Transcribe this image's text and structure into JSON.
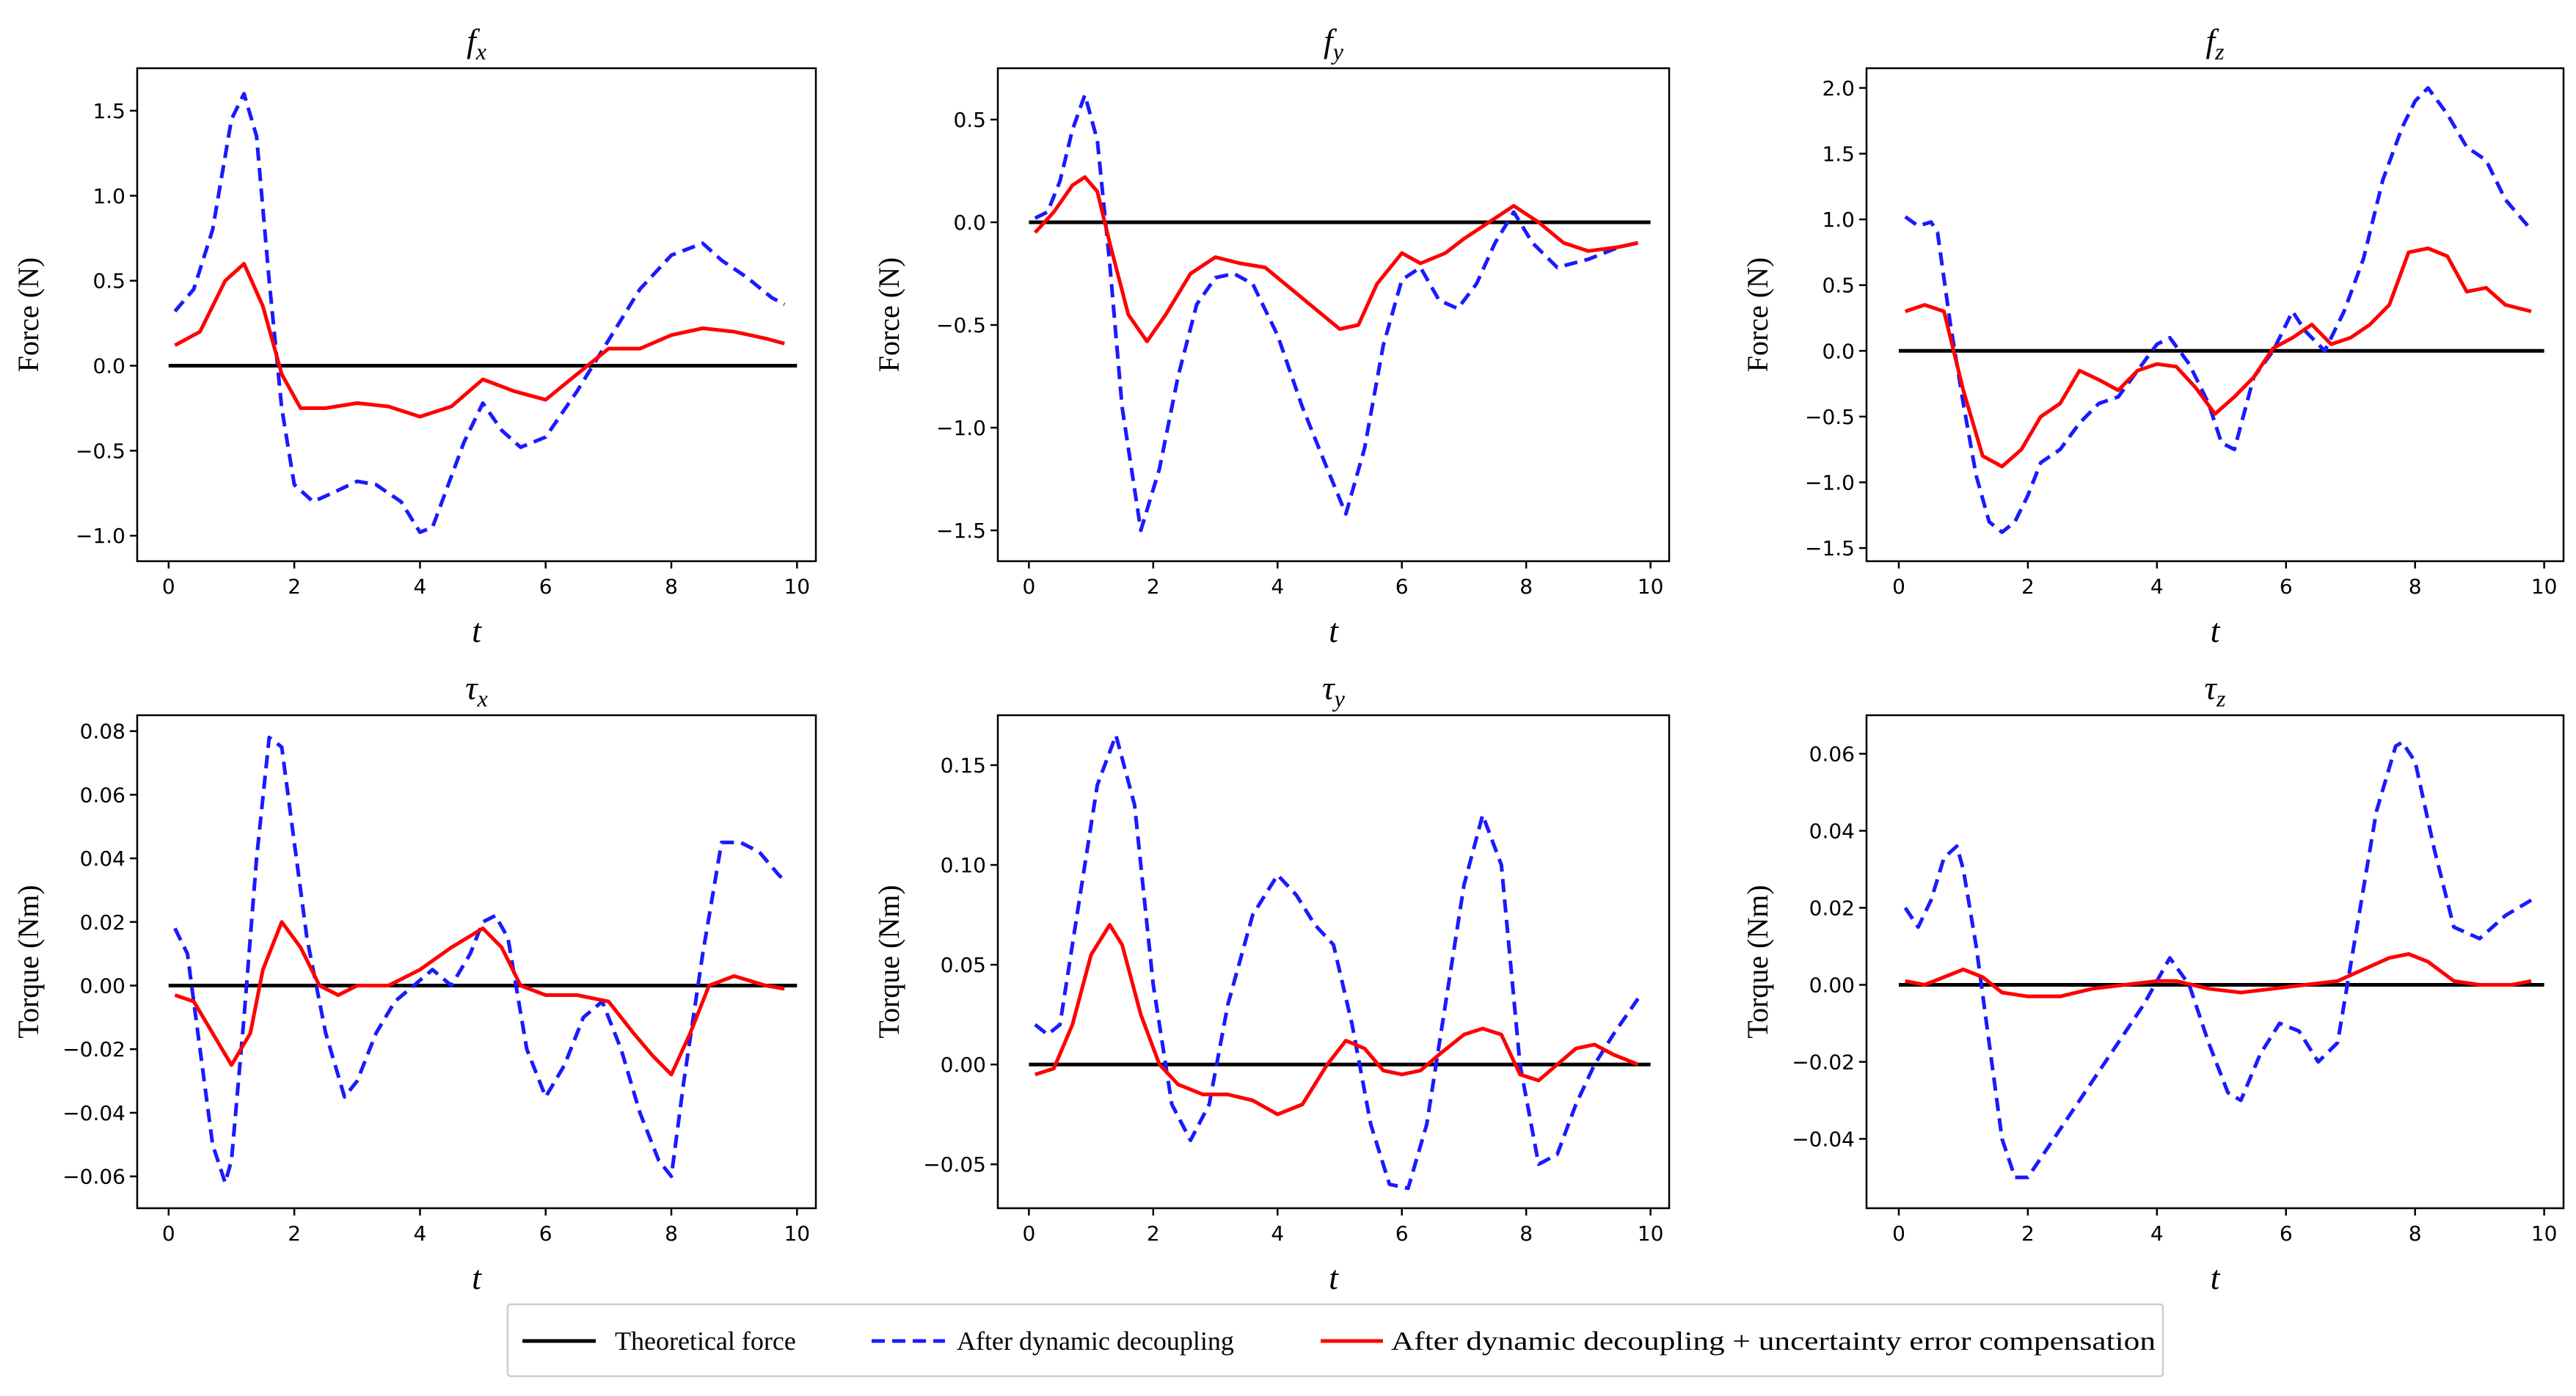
{
  "chart_data": [
    {
      "type": "line",
      "title": "f_x",
      "title_main": "f",
      "title_sub": "x",
      "xlabel": "t",
      "ylabel": "Force (N)",
      "xlim": [
        -0.5,
        10.3
      ],
      "ylim": [
        -1.15,
        1.75
      ],
      "xticks": [
        "0",
        "2",
        "4",
        "6",
        "8",
        "10"
      ],
      "yticks": [
        "−1.0",
        "−0.5",
        "0.0",
        "0.5",
        "1.0",
        "1.5"
      ],
      "series": [
        {
          "name": "Theoretical force",
          "x": [
            0,
            10
          ],
          "values": [
            0,
            0
          ]
        },
        {
          "name": "After dynamic decoupling",
          "x": [
            0.1,
            0.4,
            0.7,
            1.0,
            1.2,
            1.4,
            1.6,
            1.8,
            2.0,
            2.3,
            2.6,
            3.0,
            3.3,
            3.7,
            4.0,
            4.2,
            4.4,
            4.7,
            5.0,
            5.3,
            5.6,
            6.0,
            6.5,
            7.0,
            7.5,
            8.0,
            8.5,
            8.8,
            9.2,
            9.6,
            9.8
          ],
          "values": [
            0.32,
            0.45,
            0.8,
            1.45,
            1.6,
            1.35,
            0.5,
            -0.25,
            -0.7,
            -0.8,
            -0.75,
            -0.68,
            -0.7,
            -0.8,
            -0.98,
            -0.95,
            -0.75,
            -0.45,
            -0.22,
            -0.38,
            -0.48,
            -0.42,
            -0.15,
            0.15,
            0.45,
            0.65,
            0.72,
            0.62,
            0.52,
            0.4,
            0.36
          ]
        },
        {
          "name": "After dynamic decoupling + uncertainty error compensation",
          "x": [
            0.1,
            0.5,
            0.9,
            1.2,
            1.5,
            1.8,
            2.1,
            2.5,
            3.0,
            3.5,
            4.0,
            4.5,
            5.0,
            5.5,
            6.0,
            6.5,
            7.0,
            7.5,
            8.0,
            8.5,
            9.0,
            9.5,
            9.8
          ],
          "values": [
            0.12,
            0.2,
            0.5,
            0.6,
            0.35,
            -0.05,
            -0.25,
            -0.25,
            -0.22,
            -0.24,
            -0.3,
            -0.24,
            -0.08,
            -0.15,
            -0.2,
            -0.05,
            0.1,
            0.1,
            0.18,
            0.22,
            0.2,
            0.16,
            0.13
          ]
        }
      ]
    },
    {
      "type": "line",
      "title": "f_y",
      "title_main": "f",
      "title_sub": "y",
      "xlabel": "t",
      "ylabel": "Force (N)",
      "xlim": [
        -0.5,
        10.3
      ],
      "ylim": [
        -1.65,
        0.75
      ],
      "xticks": [
        "0",
        "2",
        "4",
        "6",
        "8",
        "10"
      ],
      "yticks": [
        "−1.5",
        "−1.0",
        "−0.5",
        "0.0",
        "0.5"
      ],
      "series": [
        {
          "name": "Theoretical force",
          "x": [
            0,
            10
          ],
          "values": [
            0,
            0
          ]
        },
        {
          "name": "After dynamic decoupling",
          "x": [
            0.1,
            0.3,
            0.5,
            0.7,
            0.9,
            1.1,
            1.3,
            1.5,
            1.8,
            2.1,
            2.4,
            2.7,
            3.0,
            3.3,
            3.6,
            4.0,
            4.4,
            4.8,
            5.1,
            5.4,
            5.7,
            6.0,
            6.3,
            6.6,
            6.9,
            7.2,
            7.5,
            7.8,
            8.1,
            8.5,
            9.0,
            9.5,
            9.8
          ],
          "values": [
            0.02,
            0.05,
            0.2,
            0.45,
            0.62,
            0.4,
            -0.2,
            -0.9,
            -1.5,
            -1.2,
            -0.75,
            -0.4,
            -0.27,
            -0.25,
            -0.3,
            -0.55,
            -0.9,
            -1.2,
            -1.42,
            -1.1,
            -0.6,
            -0.28,
            -0.22,
            -0.38,
            -0.42,
            -0.3,
            -0.1,
            0.05,
            -0.1,
            -0.22,
            -0.18,
            -0.12,
            -0.1
          ]
        },
        {
          "name": "After dynamic decoupling + uncertainty error compensation",
          "x": [
            0.1,
            0.4,
            0.7,
            0.9,
            1.1,
            1.3,
            1.6,
            1.9,
            2.2,
            2.6,
            3.0,
            3.4,
            3.8,
            4.2,
            4.6,
            5.0,
            5.3,
            5.6,
            6.0,
            6.3,
            6.7,
            7.0,
            7.4,
            7.8,
            8.2,
            8.6,
            9.0,
            9.5,
            9.8
          ],
          "values": [
            -0.05,
            0.05,
            0.18,
            0.22,
            0.15,
            -0.1,
            -0.45,
            -0.58,
            -0.45,
            -0.25,
            -0.17,
            -0.2,
            -0.22,
            -0.32,
            -0.42,
            -0.52,
            -0.5,
            -0.3,
            -0.15,
            -0.2,
            -0.15,
            -0.08,
            0.0,
            0.08,
            0.0,
            -0.1,
            -0.14,
            -0.12,
            -0.1
          ]
        }
      ]
    },
    {
      "type": "line",
      "title": "f_z",
      "title_main": "f",
      "title_sub": "z",
      "xlabel": "t",
      "ylabel": "Force (N)",
      "xlim": [
        -0.5,
        10.3
      ],
      "ylim": [
        -1.6,
        2.15
      ],
      "xticks": [
        "0",
        "2",
        "4",
        "6",
        "8",
        "10"
      ],
      "yticks": [
        "−1.5",
        "−1.0",
        "−0.5",
        "0.0",
        "0.5",
        "1.0",
        "1.5",
        "2.0"
      ],
      "series": [
        {
          "name": "Theoretical force",
          "x": [
            0,
            10
          ],
          "values": [
            0,
            0
          ]
        },
        {
          "name": "After dynamic decoupling",
          "x": [
            0.1,
            0.3,
            0.5,
            0.6,
            0.8,
            1.0,
            1.2,
            1.4,
            1.6,
            1.8,
            2.0,
            2.2,
            2.5,
            2.8,
            3.1,
            3.4,
            3.7,
            4.0,
            4.2,
            4.5,
            4.8,
            5.0,
            5.2,
            5.5,
            5.8,
            6.1,
            6.3,
            6.6,
            6.9,
            7.2,
            7.5,
            7.8,
            8.0,
            8.2,
            8.5,
            8.8,
            9.1,
            9.4,
            9.8
          ],
          "values": [
            1.02,
            0.95,
            0.98,
            0.9,
            0.2,
            -0.4,
            -0.95,
            -1.3,
            -1.38,
            -1.3,
            -1.1,
            -0.85,
            -0.75,
            -0.55,
            -0.4,
            -0.35,
            -0.15,
            0.05,
            0.1,
            -0.1,
            -0.4,
            -0.7,
            -0.75,
            -0.2,
            0.0,
            0.3,
            0.15,
            0.0,
            0.3,
            0.7,
            1.3,
            1.7,
            1.9,
            2.0,
            1.8,
            1.55,
            1.45,
            1.15,
            0.92
          ]
        },
        {
          "name": "After dynamic decoupling + uncertainty error compensation",
          "x": [
            0.1,
            0.4,
            0.7,
            1.0,
            1.3,
            1.6,
            1.9,
            2.2,
            2.5,
            2.8,
            3.1,
            3.4,
            3.7,
            4.0,
            4.3,
            4.6,
            4.9,
            5.2,
            5.5,
            5.8,
            6.1,
            6.4,
            6.7,
            7.0,
            7.3,
            7.6,
            7.9,
            8.2,
            8.5,
            8.8,
            9.1,
            9.4,
            9.8
          ],
          "values": [
            0.3,
            0.35,
            0.3,
            -0.3,
            -0.8,
            -0.88,
            -0.75,
            -0.5,
            -0.4,
            -0.15,
            -0.22,
            -0.3,
            -0.15,
            -0.1,
            -0.12,
            -0.28,
            -0.48,
            -0.35,
            -0.2,
            0.02,
            0.1,
            0.2,
            0.05,
            0.1,
            0.2,
            0.35,
            0.75,
            0.78,
            0.72,
            0.45,
            0.48,
            0.35,
            0.3
          ]
        }
      ]
    },
    {
      "type": "line",
      "title": "τ_x",
      "title_main": "τ",
      "title_sub": "x",
      "xlabel": "t",
      "ylabel": "Torque (Nm)",
      "xlim": [
        -0.5,
        10.3
      ],
      "ylim": [
        -0.07,
        0.085
      ],
      "xticks": [
        "0",
        "2",
        "4",
        "6",
        "8",
        "10"
      ],
      "yticks": [
        "−0.06",
        "−0.04",
        "−0.02",
        "0.00",
        "0.02",
        "0.04",
        "0.06",
        "0.08"
      ],
      "series": [
        {
          "name": "Theoretical force",
          "x": [
            0,
            10
          ],
          "values": [
            0,
            0
          ]
        },
        {
          "name": "After dynamic decoupling",
          "x": [
            0.1,
            0.3,
            0.5,
            0.7,
            0.9,
            1.0,
            1.2,
            1.4,
            1.6,
            1.8,
            2.0,
            2.2,
            2.5,
            2.8,
            3.0,
            3.3,
            3.6,
            3.9,
            4.2,
            4.5,
            4.8,
            5.0,
            5.2,
            5.4,
            5.7,
            6.0,
            6.3,
            6.6,
            6.9,
            7.2,
            7.5,
            7.8,
            8.0,
            8.2,
            8.5,
            8.8,
            9.1,
            9.4,
            9.7,
            9.8
          ],
          "values": [
            0.018,
            0.01,
            -0.02,
            -0.05,
            -0.062,
            -0.055,
            -0.01,
            0.04,
            0.078,
            0.075,
            0.045,
            0.015,
            -0.015,
            -0.035,
            -0.03,
            -0.015,
            -0.005,
            0.0,
            0.005,
            0.0,
            0.01,
            0.02,
            0.022,
            0.015,
            -0.02,
            -0.035,
            -0.025,
            -0.01,
            -0.005,
            -0.02,
            -0.04,
            -0.055,
            -0.06,
            -0.03,
            0.01,
            0.045,
            0.045,
            0.042,
            0.035,
            0.033
          ]
        },
        {
          "name": "After dynamic decoupling + uncertainty error compensation",
          "x": [
            0.1,
            0.4,
            0.7,
            1.0,
            1.3,
            1.5,
            1.8,
            2.1,
            2.4,
            2.7,
            3.0,
            3.5,
            4.0,
            4.5,
            5.0,
            5.3,
            5.6,
            6.0,
            6.5,
            7.0,
            7.4,
            7.7,
            8.0,
            8.3,
            8.6,
            9.0,
            9.5,
            9.8
          ],
          "values": [
            -0.003,
            -0.005,
            -0.015,
            -0.025,
            -0.015,
            0.005,
            0.02,
            0.012,
            0.0,
            -0.003,
            0.0,
            0.0,
            0.005,
            0.012,
            0.018,
            0.012,
            0.0,
            -0.003,
            -0.003,
            -0.005,
            -0.015,
            -0.022,
            -0.028,
            -0.015,
            0.0,
            0.003,
            0.0,
            -0.001
          ]
        }
      ]
    },
    {
      "type": "line",
      "title": "τ_y",
      "title_main": "τ",
      "title_sub": "y",
      "xlabel": "t",
      "ylabel": "Torque (Nm)",
      "xlim": [
        -0.5,
        10.3
      ],
      "ylim": [
        -0.072,
        0.175
      ],
      "xticks": [
        "0",
        "2",
        "4",
        "6",
        "8",
        "10"
      ],
      "yticks": [
        "−0.05",
        "0.00",
        "0.05",
        "0.10",
        "0.15"
      ],
      "series": [
        {
          "name": "Theoretical force",
          "x": [
            0,
            10
          ],
          "values": [
            0,
            0
          ]
        },
        {
          "name": "After dynamic decoupling",
          "x": [
            0.1,
            0.3,
            0.5,
            0.8,
            1.1,
            1.4,
            1.7,
            2.0,
            2.3,
            2.6,
            2.9,
            3.2,
            3.6,
            4.0,
            4.3,
            4.6,
            4.9,
            5.2,
            5.5,
            5.8,
            6.1,
            6.4,
            6.7,
            7.0,
            7.3,
            7.6,
            7.9,
            8.2,
            8.5,
            8.8,
            9.1,
            9.4,
            9.8
          ],
          "values": [
            0.02,
            0.015,
            0.02,
            0.08,
            0.14,
            0.165,
            0.13,
            0.04,
            -0.02,
            -0.038,
            -0.02,
            0.03,
            0.075,
            0.095,
            0.085,
            0.07,
            0.06,
            0.02,
            -0.03,
            -0.06,
            -0.062,
            -0.03,
            0.03,
            0.09,
            0.125,
            0.1,
            0.0,
            -0.05,
            -0.045,
            -0.02,
            0.0,
            0.015,
            0.033
          ]
        },
        {
          "name": "After dynamic decoupling + uncertainty error compensation",
          "x": [
            0.1,
            0.4,
            0.7,
            1.0,
            1.3,
            1.5,
            1.8,
            2.1,
            2.4,
            2.8,
            3.2,
            3.6,
            4.0,
            4.4,
            4.8,
            5.1,
            5.4,
            5.7,
            6.0,
            6.3,
            6.6,
            7.0,
            7.3,
            7.6,
            7.9,
            8.2,
            8.5,
            8.8,
            9.1,
            9.4,
            9.8
          ],
          "values": [
            -0.005,
            -0.002,
            0.02,
            0.055,
            0.07,
            0.06,
            0.025,
            0.0,
            -0.01,
            -0.015,
            -0.015,
            -0.018,
            -0.025,
            -0.02,
            0.0,
            0.012,
            0.008,
            -0.003,
            -0.005,
            -0.003,
            0.005,
            0.015,
            0.018,
            0.015,
            -0.005,
            -0.008,
            0.0,
            0.008,
            0.01,
            0.005,
            0.0
          ]
        }
      ]
    },
    {
      "type": "line",
      "title": "τ_z",
      "title_main": "τ",
      "title_sub": "z",
      "xlabel": "t",
      "ylabel": "Torque (Nm)",
      "xlim": [
        -0.5,
        10.3
      ],
      "ylim": [
        -0.058,
        0.07
      ],
      "xticks": [
        "0",
        "2",
        "4",
        "6",
        "8",
        "10"
      ],
      "yticks": [
        "−0.04",
        "−0.02",
        "0.00",
        "0.02",
        "0.04",
        "0.06"
      ],
      "series": [
        {
          "name": "Theoretical force",
          "x": [
            0,
            10
          ],
          "values": [
            0,
            0
          ]
        },
        {
          "name": "After dynamic decoupling",
          "x": [
            0.1,
            0.3,
            0.5,
            0.7,
            0.9,
            1.0,
            1.2,
            1.4,
            1.6,
            1.8,
            2.0,
            2.2,
            2.6,
            3.0,
            3.4,
            3.8,
            4.2,
            4.5,
            4.8,
            5.1,
            5.3,
            5.6,
            5.9,
            6.2,
            6.5,
            6.8,
            7.1,
            7.4,
            7.7,
            7.8,
            8.0,
            8.3,
            8.6,
            9.0,
            9.4,
            9.8
          ],
          "values": [
            0.02,
            0.015,
            0.022,
            0.033,
            0.036,
            0.03,
            0.01,
            -0.015,
            -0.04,
            -0.05,
            -0.05,
            -0.045,
            -0.035,
            -0.025,
            -0.015,
            -0.005,
            0.007,
            0.0,
            -0.015,
            -0.028,
            -0.03,
            -0.018,
            -0.01,
            -0.012,
            -0.02,
            -0.015,
            0.015,
            0.045,
            0.062,
            0.063,
            0.058,
            0.035,
            0.015,
            0.012,
            0.018,
            0.022
          ]
        },
        {
          "name": "After dynamic decoupling + uncertainty error compensation",
          "x": [
            0.1,
            0.4,
            0.7,
            1.0,
            1.3,
            1.6,
            2.0,
            2.5,
            3.0,
            3.5,
            4.0,
            4.3,
            4.8,
            5.3,
            5.8,
            6.3,
            6.8,
            7.2,
            7.6,
            7.9,
            8.2,
            8.6,
            9.0,
            9.5,
            9.8
          ],
          "values": [
            0.001,
            0.0,
            0.002,
            0.004,
            0.002,
            -0.002,
            -0.003,
            -0.003,
            -0.001,
            0.0,
            0.001,
            0.001,
            -0.001,
            -0.002,
            -0.001,
            0.0,
            0.001,
            0.004,
            0.007,
            0.008,
            0.006,
            0.001,
            0.0,
            0.0,
            0.001
          ]
        }
      ]
    }
  ],
  "legend": {
    "entries": [
      "Theoretical force",
      "After dynamic decoupling",
      "After dynamic decoupling + uncertainty error compensation"
    ]
  },
  "colors": {
    "theoretical": "#000000",
    "decoupled": "#1a1aff",
    "compensated": "#ff0000"
  }
}
